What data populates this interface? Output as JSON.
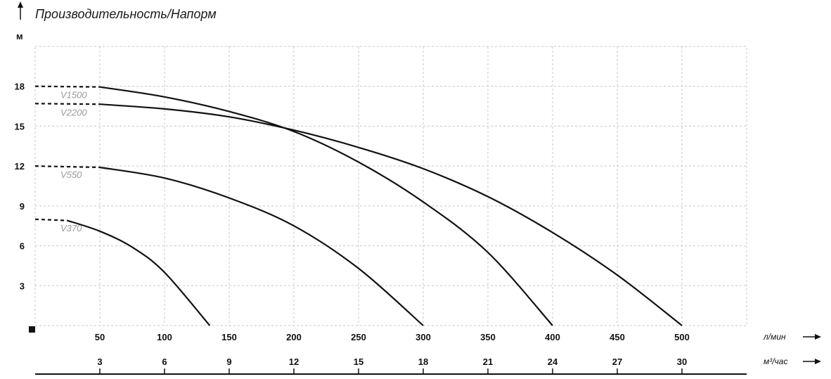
{
  "chart_data": {
    "type": "line",
    "title": "Производительность/Напорм",
    "ylabel": "м",
    "y_ticks": [
      3,
      6,
      9,
      12,
      15,
      18
    ],
    "ylim": [
      0,
      21
    ],
    "xlim": [
      0,
      550
    ],
    "x_ticks": [
      50,
      100,
      150,
      200,
      250,
      300,
      350,
      400,
      450,
      500
    ],
    "x_unit": "л/мин",
    "x2_ticks": [
      3,
      6,
      9,
      12,
      15,
      18,
      21,
      24,
      27,
      30
    ],
    "x2_unit": "м³/час",
    "grid": true,
    "series": [
      {
        "name": "V1500",
        "dashed_until": 50,
        "x": [
          0,
          50,
          100,
          150,
          200,
          250,
          300,
          350,
          400
        ],
        "y": [
          18,
          17.95,
          17.2,
          16.1,
          14.6,
          12.3,
          9.3,
          5.5,
          0
        ]
      },
      {
        "name": "V2200",
        "dashed_until": 50,
        "x": [
          0,
          50,
          100,
          150,
          200,
          250,
          300,
          350,
          400,
          450,
          500
        ],
        "y": [
          16.7,
          16.65,
          16.3,
          15.7,
          14.7,
          13.4,
          11.8,
          9.7,
          7.0,
          3.8,
          0
        ]
      },
      {
        "name": "V550",
        "dashed_until": 50,
        "x": [
          0,
          50,
          100,
          150,
          200,
          250,
          300
        ],
        "y": [
          12,
          11.9,
          11.1,
          9.6,
          7.5,
          4.3,
          0
        ]
      },
      {
        "name": "V370",
        "dashed_until": 25,
        "x": [
          0,
          25,
          50,
          75,
          100,
          135
        ],
        "y": [
          8,
          7.9,
          7.1,
          5.9,
          4.0,
          0
        ]
      }
    ]
  }
}
